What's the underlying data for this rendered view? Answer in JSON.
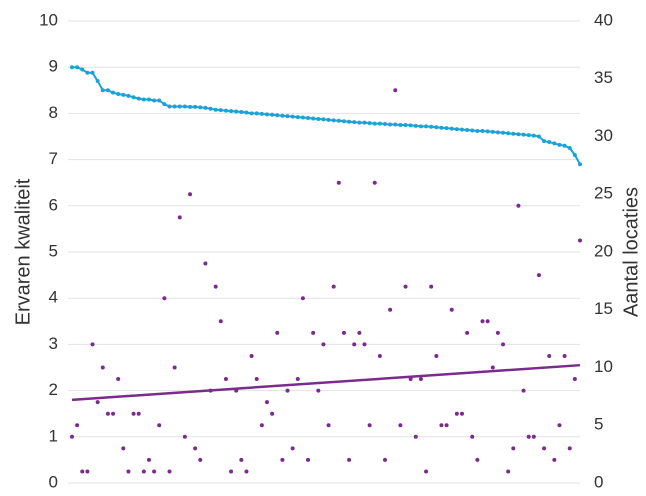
{
  "chart_data": {
    "type": "line-scatter",
    "ylabel": "Ervaren kwaliteit",
    "y2label": "Aantal locaties",
    "ylim": [
      0,
      10
    ],
    "yticks": [
      0,
      1,
      2,
      3,
      4,
      5,
      6,
      7,
      8,
      9,
      10
    ],
    "y2lim": [
      0,
      40
    ],
    "y2ticks": [
      0,
      5,
      10,
      15,
      20,
      25,
      30,
      35,
      40
    ],
    "grid": true,
    "series": [
      {
        "kind": "line",
        "color": "#1aa3d9",
        "values": [
          9.0,
          9.0,
          8.95,
          8.88,
          8.88,
          8.7,
          8.5,
          8.5,
          8.45,
          8.42,
          8.4,
          8.38,
          8.35,
          8.32,
          8.3,
          8.3,
          8.28,
          8.28,
          8.2,
          8.15,
          8.15,
          8.15,
          8.15,
          8.14,
          8.14,
          8.13,
          8.12,
          8.1,
          8.08,
          8.07,
          8.06,
          8.05,
          8.04,
          8.03,
          8.02,
          8.0,
          8.0,
          7.99,
          7.98,
          7.97,
          7.96,
          7.95,
          7.94,
          7.93,
          7.92,
          7.91,
          7.9,
          7.89,
          7.88,
          7.87,
          7.86,
          7.85,
          7.84,
          7.83,
          7.82,
          7.81,
          7.8,
          7.8,
          7.79,
          7.78,
          7.78,
          7.77,
          7.76,
          7.76,
          7.75,
          7.75,
          7.74,
          7.73,
          7.72,
          7.72,
          7.71,
          7.7,
          7.69,
          7.68,
          7.67,
          7.66,
          7.65,
          7.64,
          7.63,
          7.62,
          7.62,
          7.61,
          7.6,
          7.59,
          7.58,
          7.57,
          7.56,
          7.55,
          7.54,
          7.53,
          7.52,
          7.5,
          7.4,
          7.38,
          7.35,
          7.32,
          7.3,
          7.25,
          7.1,
          6.9
        ]
      },
      {
        "kind": "scatter",
        "axis": "y2",
        "color": "#7b2b8c",
        "values": [
          4,
          5,
          1,
          1,
          12,
          7,
          10,
          6,
          6,
          9,
          3,
          1,
          6,
          6,
          1,
          2,
          1,
          5,
          16,
          1,
          10,
          23,
          4,
          25,
          3,
          2,
          19,
          8,
          17,
          14,
          9,
          1,
          8,
          2,
          1,
          11,
          9,
          5,
          7,
          6,
          13,
          2,
          8,
          3,
          9,
          16,
          2,
          13,
          8,
          12,
          5,
          17,
          26,
          13,
          2,
          12,
          13,
          12,
          5,
          26,
          11,
          2,
          15,
          34,
          5,
          17,
          9,
          4,
          9,
          1,
          17,
          11,
          5,
          5,
          15,
          6,
          6,
          13,
          4,
          2,
          14,
          14,
          10,
          13,
          12,
          1,
          3,
          24,
          8,
          4,
          4,
          18,
          3,
          11,
          2,
          5,
          11,
          3,
          9,
          21
        ]
      },
      {
        "kind": "trend",
        "axis": "y2",
        "color": "#7b2b8c",
        "values": [
          7.2,
          10.2
        ]
      }
    ]
  }
}
